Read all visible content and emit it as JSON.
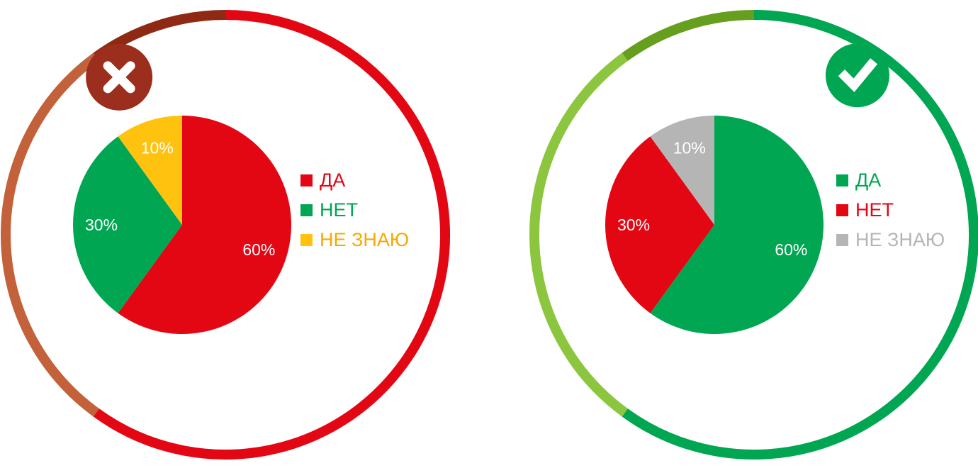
{
  "chart_data": [
    {
      "type": "pie",
      "name": "wrong-example",
      "badge": "cross",
      "legend_position": "right",
      "slices": [
        {
          "label": "ДА",
          "value": 60,
          "pct_label": "60%",
          "color": "#e30613"
        },
        {
          "label": "НЕТ",
          "value": 30,
          "pct_label": "30%",
          "color": "#00a651"
        },
        {
          "label": "НЕ ЗНАЮ",
          "value": 10,
          "pct_label": "10%",
          "color": "#ffc20e"
        }
      ],
      "legend_text_colors": [
        "#e30613",
        "#00a651",
        "#f6a800"
      ],
      "ring_colors": {
        "main": "#e30613",
        "secondary": "#c2613a",
        "tertiary": "#8e2a14"
      },
      "badge_color": "#9c2e1d"
    },
    {
      "type": "pie",
      "name": "correct-example",
      "badge": "check",
      "legend_position": "right",
      "slices": [
        {
          "label": "ДА",
          "value": 60,
          "pct_label": "60%",
          "color": "#00a651"
        },
        {
          "label": "НЕТ",
          "value": 30,
          "pct_label": "30%",
          "color": "#e30613"
        },
        {
          "label": "НЕ ЗНАЮ",
          "value": 10,
          "pct_label": "10%",
          "color": "#b5b5b5"
        }
      ],
      "legend_text_colors": [
        "#00a651",
        "#e30613",
        "#b5b5b5"
      ],
      "ring_colors": {
        "main": "#00a651",
        "secondary": "#8cc63f",
        "tertiary": "#669e1d"
      },
      "badge_color": "#00a651"
    }
  ]
}
